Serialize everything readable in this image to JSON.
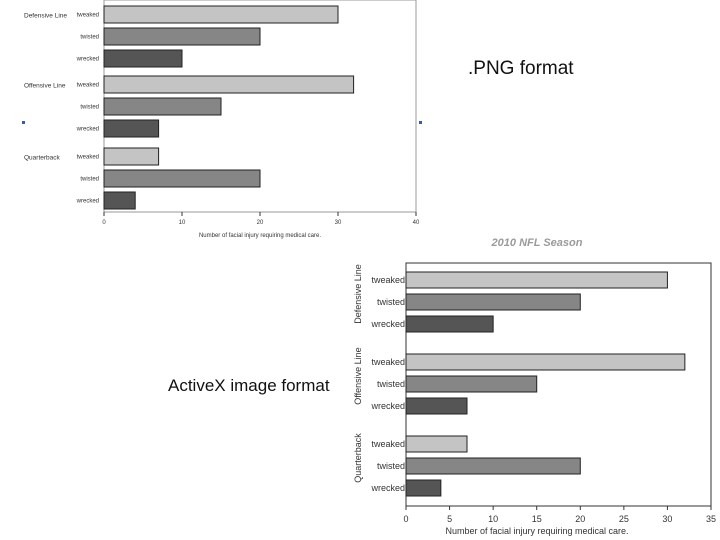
{
  "captions": {
    "png": ".PNG format",
    "activex": "ActiveX image format"
  },
  "colors": {
    "tweaked": "#c4c4c4",
    "twisted": "#868686",
    "wrecked": "#555555",
    "marker": "#3b5aa8"
  },
  "chart_data": [
    {
      "type": "bar",
      "orientation": "horizontal",
      "title": "",
      "xlabel": "Number of facial injury requiring medical care.",
      "ylabel": "",
      "groups": [
        "Defensive Line",
        "Offensive Line",
        "Quarterback"
      ],
      "categories": [
        "tweaked",
        "twisted",
        "wrecked"
      ],
      "series": [
        {
          "group": "Defensive Line",
          "values": [
            30,
            20,
            10
          ]
        },
        {
          "group": "Offensive Line",
          "values": [
            32,
            15,
            7
          ]
        },
        {
          "group": "Quarterback",
          "values": [
            7,
            20,
            4
          ]
        }
      ],
      "xlim": [
        0,
        40
      ],
      "xticks": [
        0,
        10,
        20,
        30,
        40
      ],
      "grid": false,
      "legend": "none"
    },
    {
      "type": "bar",
      "orientation": "horizontal",
      "title": "2010 NFL Season",
      "xlabel": "Number of facial injury requiring medical care.",
      "ylabel": "",
      "groups": [
        "Defensive Line",
        "Offensive Line",
        "Quarterback"
      ],
      "categories": [
        "tweaked",
        "twisted",
        "wrecked"
      ],
      "series": [
        {
          "group": "Defensive Line",
          "values": [
            30,
            20,
            10
          ]
        },
        {
          "group": "Offensive Line",
          "values": [
            32,
            15,
            7
          ]
        },
        {
          "group": "Quarterback",
          "values": [
            7,
            20,
            4
          ]
        }
      ],
      "xlim": [
        0,
        35
      ],
      "xticks": [
        0,
        5,
        10,
        15,
        20,
        25,
        30,
        35
      ],
      "grid": false,
      "legend": "none"
    }
  ]
}
